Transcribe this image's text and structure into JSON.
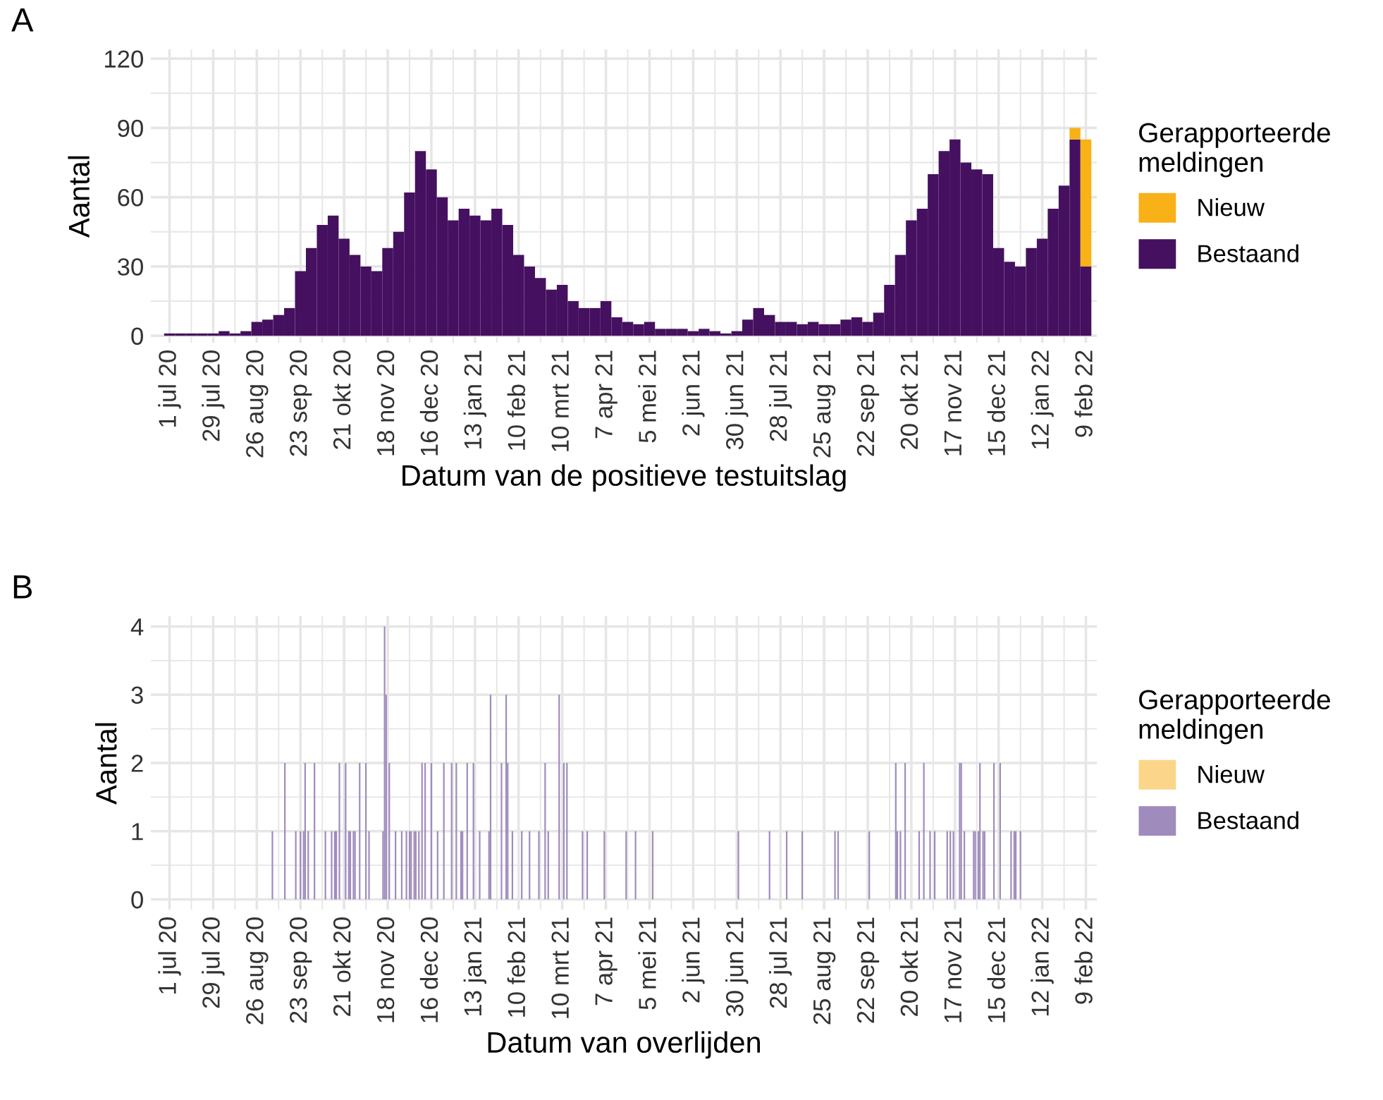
{
  "chart_data": [
    {
      "type": "bar",
      "stacked": true,
      "ylabel": "Aantal",
      "xlabel": "Datum van de positieve testuitslag",
      "legend_title": "Gerapporteerde\nmeldingen",
      "legend": "right",
      "grid": true,
      "annotations": [
        "A"
      ],
      "x": [
        "2020-07-01",
        "2020-07-08",
        "2020-07-15",
        "2020-07-22",
        "2020-07-29",
        "2020-08-05",
        "2020-08-12",
        "2020-08-19",
        "2020-08-26",
        "2020-09-02",
        "2020-09-09",
        "2020-09-16",
        "2020-09-23",
        "2020-09-30",
        "2020-10-07",
        "2020-10-14",
        "2020-10-21",
        "2020-10-28",
        "2020-11-04",
        "2020-11-11",
        "2020-11-18",
        "2020-11-25",
        "2020-12-02",
        "2020-12-09",
        "2020-12-16",
        "2020-12-23",
        "2020-12-30",
        "2021-01-06",
        "2021-01-13",
        "2021-01-20",
        "2021-01-27",
        "2021-02-03",
        "2021-02-10",
        "2021-02-17",
        "2021-02-24",
        "2021-03-03",
        "2021-03-10",
        "2021-03-17",
        "2021-03-24",
        "2021-03-31",
        "2021-04-07",
        "2021-04-14",
        "2021-04-21",
        "2021-04-28",
        "2021-05-05",
        "2021-05-12",
        "2021-05-19",
        "2021-05-26",
        "2021-06-02",
        "2021-06-09",
        "2021-06-16",
        "2021-06-23",
        "2021-06-30",
        "2021-07-07",
        "2021-07-14",
        "2021-07-21",
        "2021-07-28",
        "2021-08-04",
        "2021-08-11",
        "2021-08-18",
        "2021-08-25",
        "2021-09-01",
        "2021-09-08",
        "2021-09-15",
        "2021-09-22",
        "2021-09-29",
        "2021-10-06",
        "2021-10-13",
        "2021-10-20",
        "2021-10-27",
        "2021-11-03",
        "2021-11-10",
        "2021-11-17",
        "2021-11-24",
        "2021-12-01",
        "2021-12-08",
        "2021-12-15",
        "2021-12-22",
        "2021-12-29",
        "2022-01-05",
        "2022-01-12",
        "2022-01-19",
        "2022-01-26",
        "2022-02-02",
        "2022-02-09"
      ],
      "series": [
        {
          "name": "Bestaand",
          "color": "#45105f",
          "values": [
            1,
            1,
            1,
            1,
            1,
            2,
            1,
            2,
            6,
            7,
            9,
            12,
            28,
            38,
            48,
            52,
            42,
            35,
            30,
            28,
            38,
            45,
            62,
            80,
            72,
            60,
            50,
            55,
            52,
            50,
            55,
            48,
            35,
            30,
            25,
            20,
            22,
            15,
            12,
            12,
            15,
            8,
            6,
            5,
            6,
            3,
            3,
            3,
            2,
            3,
            2,
            1,
            2,
            7,
            12,
            9,
            6,
            6,
            5,
            6,
            5,
            5,
            7,
            8,
            6,
            10,
            22,
            35,
            50,
            55,
            70,
            80,
            85,
            75,
            72,
            70,
            38,
            32,
            30,
            38,
            42,
            55,
            65,
            85,
            30
          ]
        },
        {
          "name": "Nieuw",
          "color": "#f9b118",
          "values": [
            0,
            0,
            0,
            0,
            0,
            0,
            0,
            0,
            0,
            0,
            0,
            0,
            0,
            0,
            0,
            0,
            0,
            0,
            0,
            0,
            0,
            0,
            0,
            0,
            0,
            0,
            0,
            0,
            0,
            0,
            0,
            0,
            0,
            0,
            0,
            0,
            0,
            0,
            0,
            0,
            0,
            0,
            0,
            0,
            0,
            0,
            0,
            0,
            0,
            0,
            0,
            0,
            0,
            0,
            0,
            0,
            0,
            0,
            0,
            0,
            0,
            0,
            0,
            0,
            0,
            0,
            0,
            0,
            0,
            0,
            0,
            0,
            0,
            0,
            0,
            0,
            0,
            0,
            0,
            0,
            0,
            0,
            0,
            5,
            55
          ]
        }
      ],
      "xlim": [
        "2020-06-19",
        "2022-02-16"
      ],
      "ylim": [
        -3,
        124
      ],
      "yticks": [
        0,
        30,
        60,
        90,
        120
      ],
      "xticks": [
        {
          "value": "2020-07-01",
          "label": "1 jul 20"
        },
        {
          "value": "2020-07-29",
          "label": "29 jul 20"
        },
        {
          "value": "2020-08-26",
          "label": "26 aug 20"
        },
        {
          "value": "2020-09-23",
          "label": "23 sep 20"
        },
        {
          "value": "2020-10-21",
          "label": "21 okt 20"
        },
        {
          "value": "2020-11-18",
          "label": "18 nov 20"
        },
        {
          "value": "2020-12-16",
          "label": "16 dec 20"
        },
        {
          "value": "2021-01-13",
          "label": "13 jan 21"
        },
        {
          "value": "2021-02-10",
          "label": "10 feb 21"
        },
        {
          "value": "2021-03-10",
          "label": "10 mrt 21"
        },
        {
          "value": "2021-04-07",
          "label": "7 apr 21"
        },
        {
          "value": "2021-05-05",
          "label": "5 mei 21"
        },
        {
          "value": "2021-06-02",
          "label": "2 jun 21"
        },
        {
          "value": "2021-06-30",
          "label": "30 jun 21"
        },
        {
          "value": "2021-07-28",
          "label": "28 jul 21"
        },
        {
          "value": "2021-08-25",
          "label": "25 aug 21"
        },
        {
          "value": "2021-09-22",
          "label": "22 sep 21"
        },
        {
          "value": "2021-10-20",
          "label": "20 okt 21"
        },
        {
          "value": "2021-11-17",
          "label": "17 nov 21"
        },
        {
          "value": "2021-12-15",
          "label": "15 dec 21"
        },
        {
          "value": "2022-01-12",
          "label": "12 jan 22"
        },
        {
          "value": "2022-02-09",
          "label": "9 feb 22"
        }
      ]
    },
    {
      "type": "bar",
      "stacked": true,
      "ylabel": "Aantal",
      "xlabel": "Datum van overlijden",
      "legend_title": "Gerapporteerde\nmeldingen",
      "legend": "right",
      "grid": true,
      "annotations": [
        "B"
      ],
      "x": [
        "2020-09-05",
        "2020-09-13",
        "2020-09-20",
        "2020-09-23",
        "2020-09-25",
        "2020-09-26",
        "2020-09-28",
        "2020-10-02",
        "2020-10-09",
        "2020-10-13",
        "2020-10-15",
        "2020-10-16",
        "2020-10-18",
        "2020-10-22",
        "2020-10-24",
        "2020-10-25",
        "2020-10-27",
        "2020-10-28",
        "2020-10-31",
        "2020-11-04",
        "2020-11-06",
        "2020-11-15",
        "2020-11-16",
        "2020-11-17",
        "2020-11-19",
        "2020-11-23",
        "2020-11-27",
        "2020-11-30",
        "2020-12-02",
        "2020-12-03",
        "2020-12-05",
        "2020-12-06",
        "2020-12-08",
        "2020-12-10",
        "2020-12-12",
        "2020-12-16",
        "2020-12-20",
        "2020-12-24",
        "2020-12-29",
        "2021-01-01",
        "2021-01-04",
        "2021-01-05",
        "2021-01-08",
        "2021-01-12",
        "2021-01-16",
        "2021-01-22",
        "2021-01-23",
        "2021-01-30",
        "2021-02-02",
        "2021-02-03",
        "2021-02-06",
        "2021-02-12",
        "2021-02-17",
        "2021-02-23",
        "2021-02-27",
        "2021-03-01",
        "2021-03-08",
        "2021-03-11",
        "2021-03-13",
        "2021-03-23",
        "2021-03-26",
        "2021-04-06",
        "2021-04-20",
        "2021-04-26",
        "2021-05-07",
        "2021-07-01",
        "2021-07-21",
        "2021-08-01",
        "2021-08-11",
        "2021-09-01",
        "2021-09-03",
        "2021-09-23",
        "2021-10-10",
        "2021-10-11",
        "2021-10-13",
        "2021-10-16",
        "2021-10-25",
        "2021-10-28",
        "2021-11-01",
        "2021-11-04",
        "2021-11-12",
        "2021-11-14",
        "2021-11-16",
        "2021-11-20",
        "2021-11-21",
        "2021-11-23",
        "2021-11-29",
        "2021-11-30",
        "2021-12-02",
        "2021-12-03",
        "2021-12-05",
        "2021-12-06",
        "2021-12-12",
        "2021-12-16",
        "2021-12-23",
        "2021-12-25",
        "2021-12-26",
        "2021-12-29"
      ],
      "series": [
        {
          "name": "Bestaand",
          "color": "#a08cbc",
          "values": [
            1,
            2,
            1,
            1,
            1,
            2,
            1,
            2,
            1,
            1,
            1,
            1,
            2,
            2,
            1,
            1,
            1,
            1,
            2,
            2,
            1,
            1,
            4,
            3,
            2,
            1,
            1,
            1,
            1,
            1,
            1,
            1,
            1,
            2,
            2,
            2,
            1,
            2,
            2,
            2,
            1,
            1,
            2,
            2,
            1,
            1,
            3,
            2,
            3,
            2,
            1,
            1,
            1,
            1,
            2,
            1,
            3,
            2,
            2,
            1,
            1,
            1,
            1,
            1,
            1,
            1,
            1,
            1,
            1,
            1,
            1,
            1,
            2,
            1,
            1,
            2,
            1,
            2,
            1,
            1,
            1,
            1,
            1,
            2,
            2,
            1,
            1,
            1,
            1,
            2,
            1,
            1,
            2,
            2,
            1,
            1,
            1,
            1
          ]
        },
        {
          "name": "Nieuw",
          "color": "#fbd68a",
          "values": [
            0,
            0,
            0,
            0,
            0,
            0,
            0,
            0,
            0,
            0,
            0,
            0,
            0,
            0,
            0,
            0,
            0,
            0,
            0,
            0,
            0,
            0,
            0,
            0,
            0,
            0,
            0,
            0,
            0,
            0,
            0,
            0,
            0,
            0,
            0,
            0,
            0,
            0,
            0,
            0,
            0,
            0,
            0,
            0,
            0,
            0,
            0,
            0,
            0,
            0,
            0,
            0,
            0,
            0,
            0,
            0,
            0,
            0,
            0,
            0,
            0,
            0,
            0,
            0,
            0,
            0,
            0,
            0,
            0,
            0,
            0,
            0,
            0,
            0,
            0,
            0,
            0,
            0,
            0,
            0,
            0,
            0,
            0,
            0,
            0,
            0,
            0,
            0,
            0,
            0,
            0,
            0,
            0,
            0,
            0,
            0,
            0,
            0
          ]
        }
      ],
      "xlim": [
        "2020-06-19",
        "2022-02-16"
      ],
      "ylim": [
        -0.15,
        4.15
      ],
      "yticks": [
        0,
        1,
        2,
        3,
        4
      ],
      "xticks": [
        {
          "value": "2020-07-01",
          "label": "1 jul 20"
        },
        {
          "value": "2020-07-29",
          "label": "29 jul 20"
        },
        {
          "value": "2020-08-26",
          "label": "26 aug 20"
        },
        {
          "value": "2020-09-23",
          "label": "23 sep 20"
        },
        {
          "value": "2020-10-21",
          "label": "21 okt 20"
        },
        {
          "value": "2020-11-18",
          "label": "18 nov 20"
        },
        {
          "value": "2020-12-16",
          "label": "16 dec 20"
        },
        {
          "value": "2021-01-13",
          "label": "13 jan 21"
        },
        {
          "value": "2021-02-10",
          "label": "10 feb 21"
        },
        {
          "value": "2021-03-10",
          "label": "10 mrt 21"
        },
        {
          "value": "2021-04-07",
          "label": "7 apr 21"
        },
        {
          "value": "2021-05-05",
          "label": "5 mei 21"
        },
        {
          "value": "2021-06-02",
          "label": "2 jun 21"
        },
        {
          "value": "2021-06-30",
          "label": "30 jun 21"
        },
        {
          "value": "2021-07-28",
          "label": "28 jul 21"
        },
        {
          "value": "2021-08-25",
          "label": "25 aug 21"
        },
        {
          "value": "2021-09-22",
          "label": "22 sep 21"
        },
        {
          "value": "2021-10-20",
          "label": "20 okt 21"
        },
        {
          "value": "2021-11-17",
          "label": "17 nov 21"
        },
        {
          "value": "2021-12-15",
          "label": "15 dec 21"
        },
        {
          "value": "2022-01-12",
          "label": "12 jan 22"
        },
        {
          "value": "2022-02-09",
          "label": "9 feb 22"
        }
      ]
    }
  ]
}
